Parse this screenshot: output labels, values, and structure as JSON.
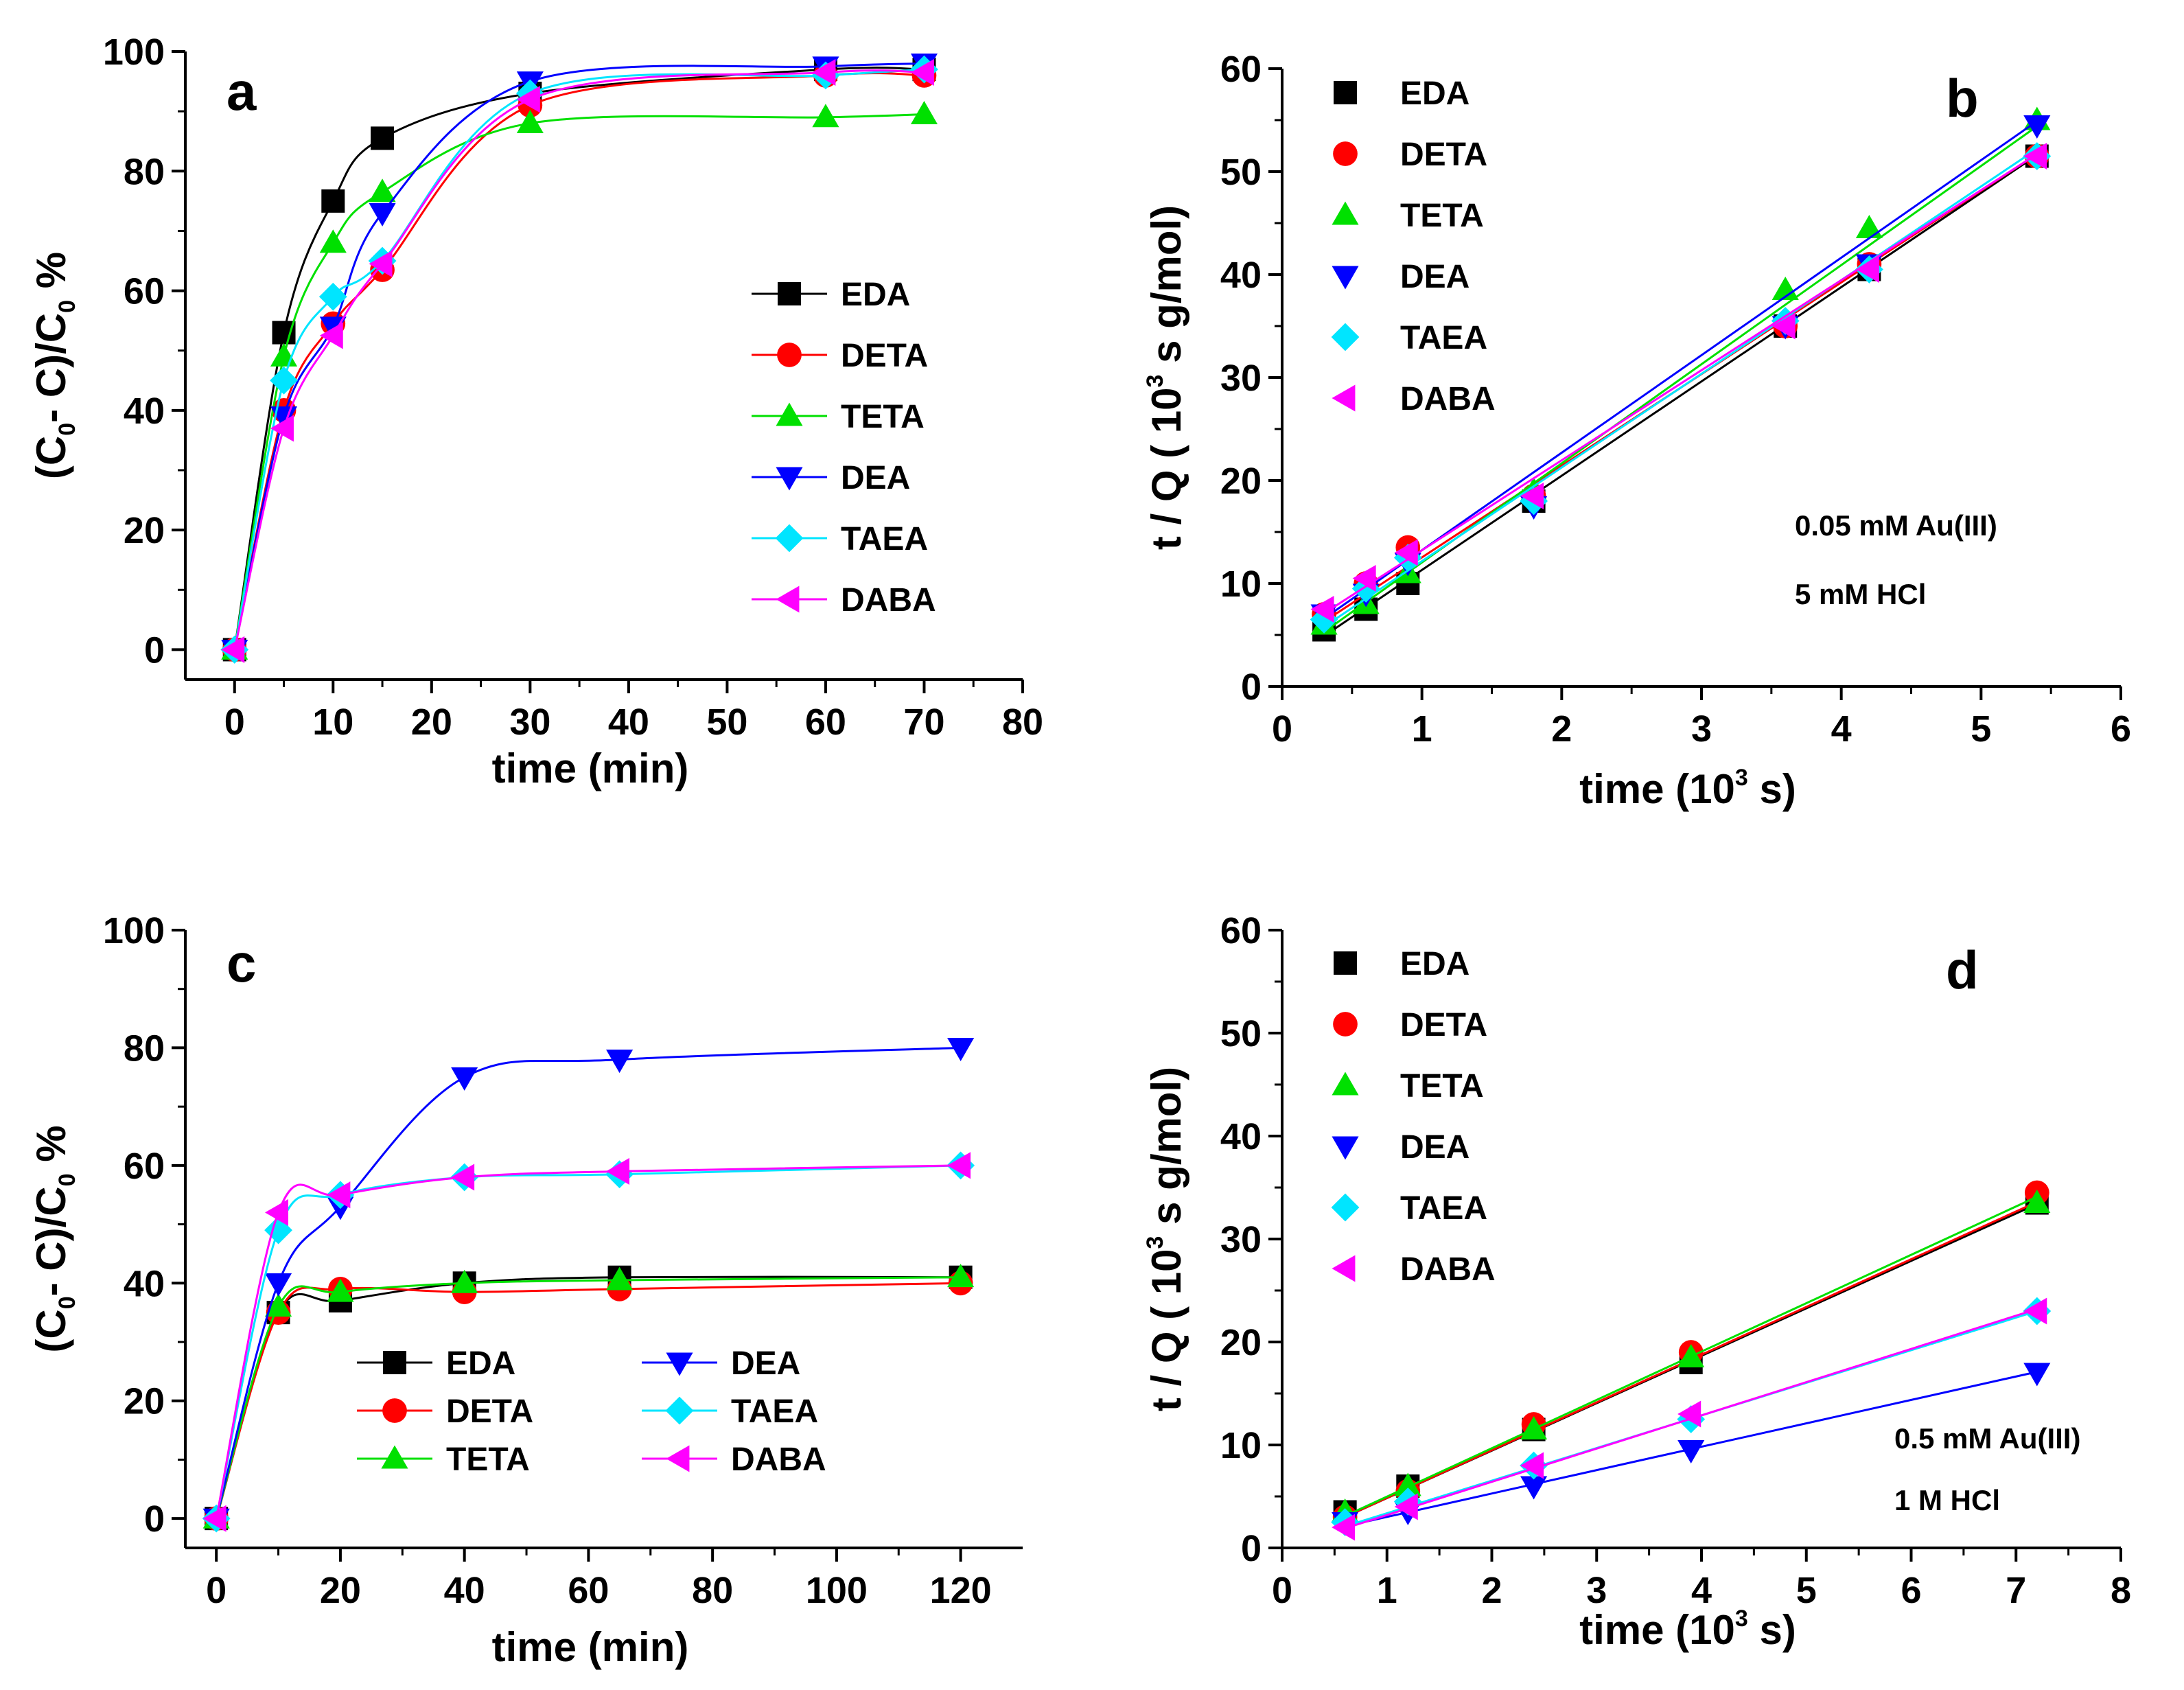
{
  "colors": {
    "EDA": "#000000",
    "DETA": "#ff0000",
    "TETA": "#00e000",
    "DEA": "#0000ff",
    "TAEA": "#00e5ff",
    "DABA": "#ff00ff"
  },
  "chart_data": [
    {
      "id": "a",
      "type": "line",
      "panel_label": "a",
      "xlabel": "time  (min)",
      "ylabel_parts": [
        "(C",
        "0",
        "- C)/C",
        "0",
        " %"
      ],
      "xlim": [
        -5,
        80
      ],
      "ylim": [
        -5,
        100
      ],
      "xticks": [
        0,
        10,
        20,
        30,
        40,
        50,
        60,
        70,
        80
      ],
      "yticks": [
        0,
        20,
        40,
        60,
        80,
        100
      ],
      "legend_style": "line",
      "legend_position": "center-right",
      "series": [
        {
          "name": "EDA",
          "marker": "square",
          "x": [
            0,
            5,
            10,
            15,
            30,
            60,
            70
          ],
          "y": [
            0,
            53,
            75,
            85.5,
            93,
            97,
            97
          ]
        },
        {
          "name": "DETA",
          "marker": "circle",
          "x": [
            0,
            5,
            10,
            15,
            30,
            60,
            70
          ],
          "y": [
            0,
            40,
            54.5,
            63.5,
            91,
            96,
            96
          ]
        },
        {
          "name": "TETA",
          "marker": "triangle-up",
          "x": [
            0,
            5,
            10,
            15,
            30,
            60,
            70
          ],
          "y": [
            0,
            49,
            68,
            76.5,
            88,
            89,
            89.5
          ]
        },
        {
          "name": "DEA",
          "marker": "triangle-down",
          "x": [
            0,
            5,
            10,
            15,
            30,
            60,
            70
          ],
          "y": [
            0,
            39,
            54,
            73,
            95,
            97.5,
            98
          ]
        },
        {
          "name": "TAEA",
          "marker": "diamond",
          "x": [
            0,
            5,
            10,
            15,
            30,
            60,
            70
          ],
          "y": [
            0,
            45,
            59,
            65,
            93,
            96,
            97
          ]
        },
        {
          "name": "DABA",
          "marker": "triangle-left",
          "x": [
            0,
            5,
            10,
            15,
            30,
            60,
            70
          ],
          "y": [
            0,
            37,
            52.5,
            64.5,
            92,
            96.5,
            96.5
          ]
        }
      ]
    },
    {
      "id": "b",
      "type": "scatter",
      "panel_label": "b",
      "xlabel_parts": [
        "time  (10",
        "3",
        " s)"
      ],
      "ylabel_parts": [
        "t / Q (  10",
        "3",
        " s g/mol)"
      ],
      "xlim": [
        0,
        6
      ],
      "ylim": [
        0,
        60
      ],
      "xticks": [
        0,
        1,
        2,
        3,
        4,
        5,
        6
      ],
      "yticks": [
        0,
        10,
        20,
        30,
        40,
        50,
        60
      ],
      "legend_style": "marker",
      "legend_position": "top-left",
      "annotations": [
        "0.05 mM Au(III)",
        "5 mM HCl"
      ],
      "series": [
        {
          "name": "EDA",
          "marker": "square",
          "x": [
            0.3,
            0.6,
            0.9,
            1.8,
            3.6,
            4.2,
            5.4
          ],
          "y": [
            5.5,
            7.5,
            10,
            18,
            35,
            40.5,
            51.5
          ],
          "fit": [
            [
              0.3,
              4.9
            ],
            [
              5.4,
              51.6
            ]
          ]
        },
        {
          "name": "DETA",
          "marker": "circle",
          "x": [
            0.3,
            0.6,
            0.9,
            1.8,
            3.6,
            4.2,
            5.4
          ],
          "y": [
            7,
            10,
            13.5,
            18.5,
            35,
            41,
            51.5
          ],
          "fit": [
            [
              0.3,
              6.3
            ],
            [
              5.4,
              51.7
            ]
          ]
        },
        {
          "name": "TETA",
          "marker": "triangle-up",
          "x": [
            0.3,
            0.6,
            0.9,
            1.8,
            3.6,
            4.2,
            5.4
          ],
          "y": [
            6,
            8,
            11,
            19,
            38.5,
            44.5,
            55
          ],
          "fit": [
            [
              0.3,
              5.3
            ],
            [
              5.4,
              54.4
            ]
          ]
        },
        {
          "name": "DEA",
          "marker": "triangle-down",
          "x": [
            0.3,
            0.6,
            0.9,
            1.8,
            3.6,
            4.2,
            5.4
          ],
          "y": [
            7,
            9,
            12,
            17.5,
            35,
            41,
            54.5
          ],
          "fit": [
            [
              0.3,
              6.6
            ],
            [
              5.4,
              54.9
            ]
          ]
        },
        {
          "name": "TAEA",
          "marker": "diamond",
          "x": [
            0.3,
            0.6,
            0.9,
            1.8,
            3.6,
            4.2,
            5.4
          ],
          "y": [
            6.5,
            9.5,
            12.5,
            18,
            35.5,
            40.5,
            51.5
          ],
          "fit": [
            [
              0.3,
              5.8
            ],
            [
              5.4,
              52.2
            ]
          ]
        },
        {
          "name": "DABA",
          "marker": "triangle-left",
          "x": [
            0.3,
            0.6,
            0.9,
            1.8,
            3.6,
            4.2,
            5.4
          ],
          "y": [
            7.5,
            10.5,
            13,
            18.5,
            35,
            40.5,
            51.5
          ],
          "fit": [
            [
              0.3,
              7.1
            ],
            [
              5.4,
              51.7
            ]
          ]
        }
      ]
    },
    {
      "id": "c",
      "type": "line",
      "panel_label": "c",
      "xlabel": "time  (min)",
      "ylabel_parts": [
        "(C",
        "0",
        "- C)/C",
        "0",
        " %"
      ],
      "xlim": [
        -5,
        130
      ],
      "ylim": [
        -5,
        100
      ],
      "xticks": [
        0,
        20,
        40,
        60,
        80,
        100,
        120
      ],
      "yticks": [
        0,
        20,
        40,
        60,
        80,
        100
      ],
      "legend_style": "line",
      "legend_position": "bottom-center",
      "series": [
        {
          "name": "EDA",
          "marker": "square",
          "x": [
            0,
            10,
            20,
            40,
            65,
            120
          ],
          "y": [
            0,
            35,
            37,
            40,
            41,
            41
          ]
        },
        {
          "name": "DETA",
          "marker": "circle",
          "x": [
            0,
            10,
            20,
            40,
            65,
            120
          ],
          "y": [
            0,
            35,
            39,
            38.5,
            39,
            40
          ]
        },
        {
          "name": "TETA",
          "marker": "triangle-up",
          "x": [
            0,
            10,
            20,
            40,
            65,
            120
          ],
          "y": [
            0,
            36,
            38.5,
            40,
            40.5,
            41
          ]
        },
        {
          "name": "DEA",
          "marker": "triangle-down",
          "x": [
            0,
            10,
            20,
            40,
            65,
            120
          ],
          "y": [
            0,
            40,
            53,
            75,
            78,
            80
          ]
        },
        {
          "name": "TAEA",
          "marker": "diamond",
          "x": [
            0,
            10,
            20,
            40,
            65,
            120
          ],
          "y": [
            0,
            49,
            55,
            58,
            58.5,
            60
          ]
        },
        {
          "name": "DABA",
          "marker": "triangle-left",
          "x": [
            0,
            10,
            20,
            40,
            65,
            120
          ],
          "y": [
            0,
            52,
            55,
            58,
            59,
            60
          ]
        }
      ]
    },
    {
      "id": "d",
      "type": "scatter",
      "panel_label": "d",
      "xlabel_parts": [
        "time  (10",
        "3",
        " s)"
      ],
      "ylabel_parts": [
        "t / Q (  10",
        "3",
        " s g/mol)"
      ],
      "xlim": [
        0,
        8
      ],
      "ylim": [
        0,
        60
      ],
      "xticks": [
        0,
        1,
        2,
        3,
        4,
        5,
        6,
        7,
        8
      ],
      "yticks": [
        0,
        10,
        20,
        30,
        40,
        50,
        60
      ],
      "legend_style": "marker",
      "legend_position": "top-left",
      "annotations": [
        "0.5 mM Au(III)",
        "1 M HCl"
      ],
      "series": [
        {
          "name": "EDA",
          "marker": "square",
          "x": [
            0.6,
            1.2,
            2.4,
            3.9,
            7.2
          ],
          "y": [
            3.5,
            6,
            11.5,
            18,
            33.5
          ],
          "fit": [
            [
              0.6,
              3.0
            ],
            [
              7.2,
              33.4
            ]
          ]
        },
        {
          "name": "DETA",
          "marker": "circle",
          "x": [
            0.6,
            1.2,
            2.4,
            3.9,
            7.2
          ],
          "y": [
            3,
            5.5,
            12,
            19,
            34.5
          ],
          "fit": [
            [
              0.6,
              3.0
            ],
            [
              7.2,
              33.6
            ]
          ]
        },
        {
          "name": "TETA",
          "marker": "triangle-up",
          "x": [
            0.6,
            1.2,
            2.4,
            3.9,
            7.2
          ],
          "y": [
            3.5,
            6,
            11.5,
            18.5,
            33.5
          ],
          "fit": [
            [
              0.6,
              3.1
            ],
            [
              7.2,
              34.1
            ]
          ]
        },
        {
          "name": "DEA",
          "marker": "triangle-down",
          "x": [
            0.6,
            1.2,
            2.4,
            3.9,
            7.2
          ],
          "y": [
            2.5,
            3.5,
            6,
            9.5,
            17
          ],
          "fit": [
            [
              0.6,
              2.1
            ],
            [
              7.2,
              17.1
            ]
          ]
        },
        {
          "name": "TAEA",
          "marker": "diamond",
          "x": [
            0.6,
            1.2,
            2.4,
            3.9,
            7.2
          ],
          "y": [
            2.5,
            4.5,
            8,
            12.5,
            23
          ],
          "fit": [
            [
              0.6,
              2.1
            ],
            [
              7.2,
              23.0
            ]
          ]
        },
        {
          "name": "DABA",
          "marker": "triangle-left",
          "x": [
            0.6,
            1.2,
            2.4,
            3.9,
            7.2
          ],
          "y": [
            2,
            4,
            8,
            13,
            23
          ],
          "fit": [
            [
              0.6,
              1.9
            ],
            [
              7.2,
              23.2
            ]
          ]
        }
      ]
    }
  ]
}
